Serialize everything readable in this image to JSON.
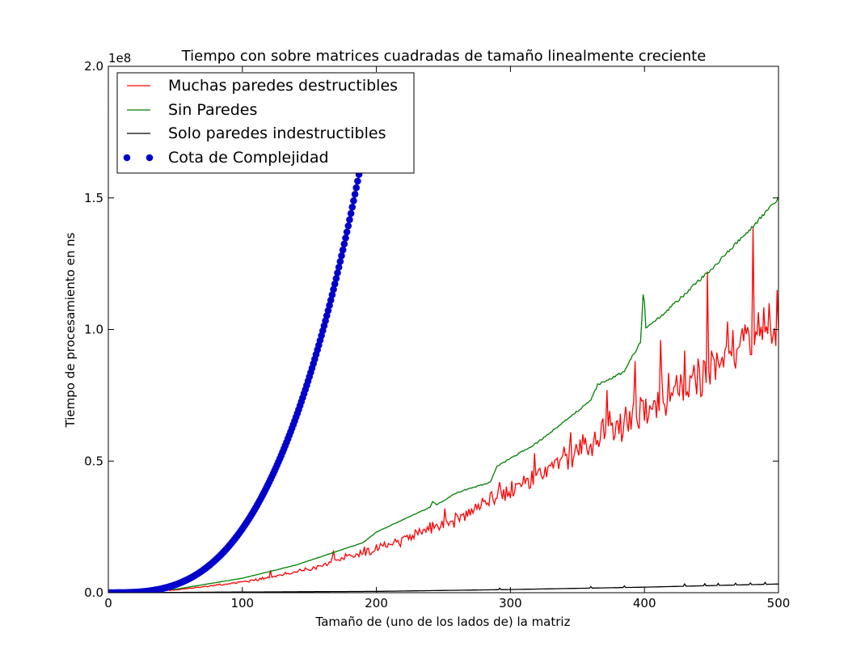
{
  "chart_data": {
    "type": "line",
    "title": "Tiempo con sobre matrices cuadradas de tamaño linealmente creciente",
    "xlabel": "Tamaño de (uno de los lados de) la matriz",
    "ylabel": "Tiempo de procesamiento en ns",
    "y_offset_label": "1e8",
    "xlim": [
      0,
      500
    ],
    "ylim": [
      0,
      200000000
    ],
    "xticks": [
      0,
      100,
      200,
      300,
      400,
      500
    ],
    "xtick_labels": [
      "0",
      "100",
      "200",
      "300",
      "400",
      "500"
    ],
    "yticks": [
      0,
      50000000,
      100000000,
      150000000,
      200000000
    ],
    "ytick_labels": [
      "0.0",
      "0.5",
      "1.0",
      "1.5",
      "2.0"
    ],
    "grid": false,
    "legend_position": "top-left",
    "series": [
      {
        "name": "Muchas paredes destructibles",
        "color": "#ff0000",
        "style": "line",
        "x": [
          0,
          50,
          100,
          125,
          150,
          175,
          200,
          225,
          250,
          275,
          300,
          325,
          350,
          375,
          400,
          425,
          450,
          475,
          500
        ],
        "y": [
          0,
          1000000,
          4000000,
          6000000,
          9000000,
          13000000,
          16500000,
          21000000,
          26000000,
          32000000,
          39000000,
          46000000,
          53000000,
          61000000,
          68000000,
          77000000,
          86000000,
          94000000,
          103000000
        ],
        "spikes": [
          {
            "x": 121,
            "y": 8500000
          },
          {
            "x": 168,
            "y": 16000000
          },
          {
            "x": 191,
            "y": 17500000
          },
          {
            "x": 233,
            "y": 23000000
          },
          {
            "x": 251,
            "y": 32000000
          },
          {
            "x": 292,
            "y": 42000000
          },
          {
            "x": 318,
            "y": 53000000
          },
          {
            "x": 345,
            "y": 61000000
          },
          {
            "x": 372,
            "y": 77000000
          },
          {
            "x": 393,
            "y": 88000000
          },
          {
            "x": 412,
            "y": 96000000
          },
          {
            "x": 430,
            "y": 92000000
          },
          {
            "x": 447,
            "y": 122000000
          },
          {
            "x": 462,
            "y": 103000000
          },
          {
            "x": 481,
            "y": 139000000
          },
          {
            "x": 493,
            "y": 110000000
          },
          {
            "x": 499,
            "y": 115000000
          }
        ]
      },
      {
        "name": "Sin Paredes",
        "color": "#008000",
        "style": "line",
        "x": [
          0,
          50,
          100,
          140,
          190,
          200,
          240,
          242,
          245,
          260,
          285,
          290,
          320,
          360,
          365,
          385,
          390,
          397,
          399,
          400,
          401,
          402,
          425,
          450,
          475,
          500
        ],
        "y": [
          0,
          1300000,
          5500000,
          10500000,
          19000000,
          23000000,
          32500000,
          34500000,
          33500000,
          38000000,
          42000000,
          48000000,
          57000000,
          73000000,
          79000000,
          84000000,
          89000000,
          95000000,
          113000000,
          110000000,
          101000000,
          100500000,
          111000000,
          123000000,
          136000000,
          150000000
        ]
      },
      {
        "name": "Solo paredes indestructibles",
        "color": "#000000",
        "style": "line",
        "x": [
          0,
          100,
          200,
          300,
          400,
          500
        ],
        "y": [
          0,
          250000,
          500000,
          1200000,
          2100000,
          3300000
        ],
        "spikes": [
          {
            "x": 292,
            "y": 1700000
          },
          {
            "x": 360,
            "y": 2300000
          },
          {
            "x": 385,
            "y": 2600000
          },
          {
            "x": 430,
            "y": 3300000
          },
          {
            "x": 445,
            "y": 3400000
          },
          {
            "x": 455,
            "y": 3500000
          },
          {
            "x": 468,
            "y": 3600000
          },
          {
            "x": 479,
            "y": 3700000
          },
          {
            "x": 490,
            "y": 3900000
          }
        ]
      },
      {
        "name": "Cota de Complejidad",
        "color": "#0000cc",
        "style": "points",
        "formula": "y = 24.3 * x^3",
        "x_start": 0,
        "x_end": 190,
        "x_step": 1
      }
    ]
  }
}
